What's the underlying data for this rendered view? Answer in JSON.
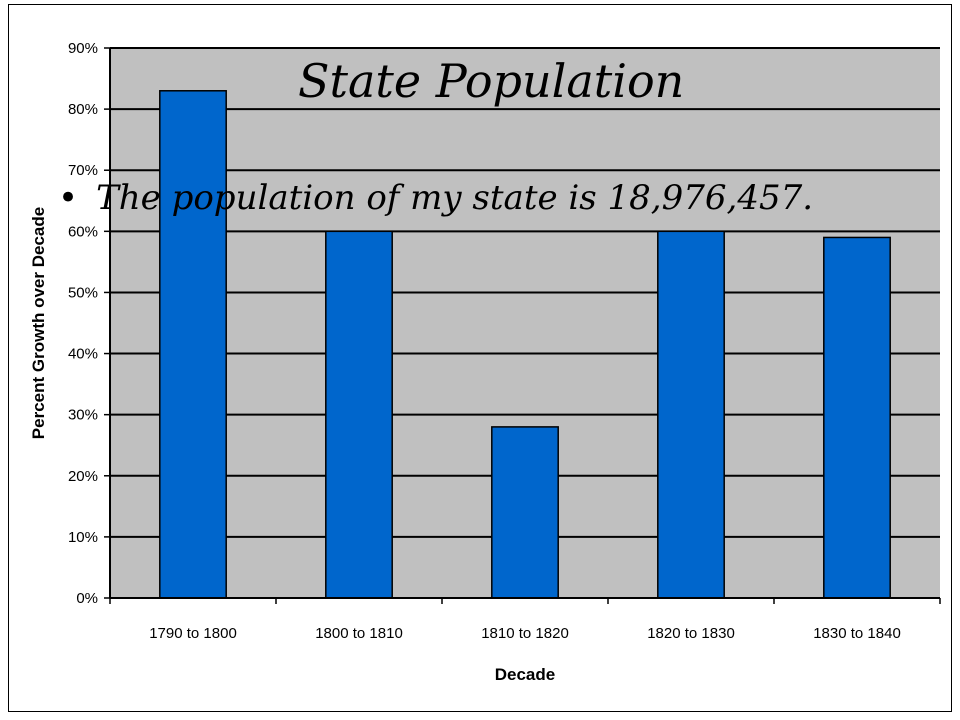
{
  "slide": {
    "title": "State Population",
    "bullet": "The population of my state is 18,976,457."
  },
  "chart_data": {
    "type": "bar",
    "categories": [
      "1790 to 1800",
      "1800 to 1810",
      "1810 to 1820",
      "1820 to 1830",
      "1830 to 1840"
    ],
    "series": [
      {
        "values": [
          83,
          60,
          28,
          60,
          59
        ]
      }
    ],
    "xlabel": "Decade",
    "ylabel": "Percent Growth over Decade",
    "ylim": [
      0,
      90
    ],
    "yticks": [
      "0%",
      "10%",
      "20%",
      "30%",
      "40%",
      "50%",
      "60%",
      "70%",
      "80%",
      "90%"
    ],
    "grid": true,
    "legend": "none",
    "colors": {
      "bar": "#0066cc",
      "plot_background": "#c0c0c0",
      "gridline": "#000000"
    }
  }
}
